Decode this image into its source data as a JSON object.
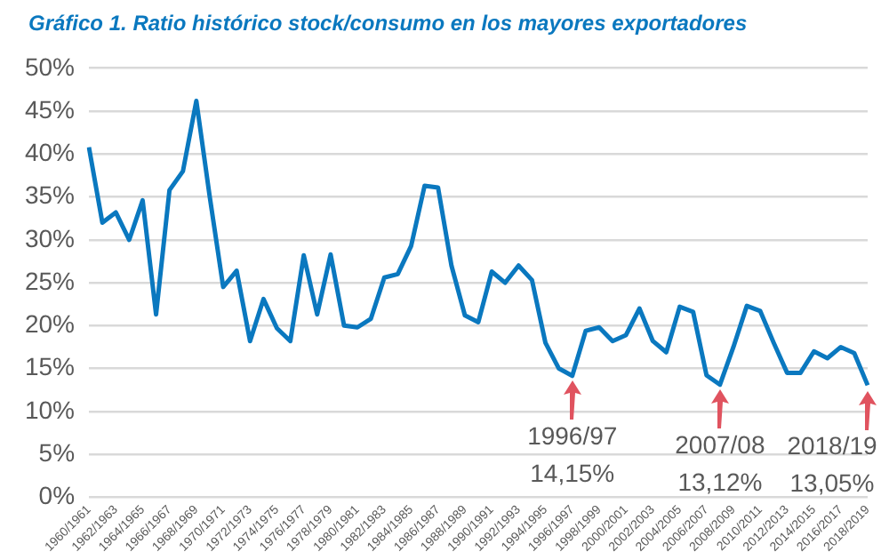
{
  "chart_data": {
    "type": "line",
    "title": "Gráfico 1. Ratio histórico stock/consumo en los mayores exportadores",
    "categories": [
      "1960/1961",
      null,
      "1962/1963",
      null,
      "1964/1965",
      null,
      "1966/1967",
      null,
      "1968/1969",
      null,
      "1970/1971",
      null,
      "1972/1973",
      null,
      "1974/1975",
      null,
      "1976/1977",
      null,
      "1978/1979",
      null,
      "1980/1981",
      null,
      "1982/1983",
      null,
      "1984/1985",
      null,
      "1986/1987",
      null,
      "1988/1989",
      null,
      "1990/1991",
      null,
      "1992/1993",
      null,
      "1994/1995",
      null,
      "1996/1997",
      null,
      "1998/1999",
      null,
      "2000/2001",
      null,
      "2002/2003",
      null,
      "2004/2005",
      null,
      "2006/2007",
      null,
      "2008/2009",
      null,
      "2010/2011",
      null,
      "2012/2013",
      null,
      "2014/2015",
      null,
      "2016/2017",
      null,
      "2018/2019"
    ],
    "series": [
      {
        "color": "#0a78bf",
        "values": [
          40.8,
          32,
          33.2,
          30,
          34.6,
          21.3,
          35.8,
          38,
          46.2,
          35,
          24.5,
          26.4,
          18.2,
          23.1,
          19.7,
          18.2,
          28.2,
          21.3,
          28.3,
          20,
          19.8,
          20.8,
          25.6,
          26,
          29.3,
          36.3,
          36.1,
          27,
          21.2,
          20.4,
          26.3,
          25,
          27,
          25.3,
          18,
          15,
          14.15,
          19.4,
          19.8,
          18.2,
          18.9,
          22,
          18.2,
          16.9,
          22.2,
          21.6,
          14.2,
          13.12,
          17.5,
          22.3,
          21.7,
          18,
          14.5,
          14.5,
          17,
          16.2,
          17.5,
          16.8,
          13.05
        ]
      }
    ],
    "ylim": [
      0,
      50
    ],
    "yticks": [
      {
        "value": 0,
        "label": "0%"
      },
      {
        "value": 5,
        "label": "5%"
      },
      {
        "value": 10,
        "label": "10%"
      },
      {
        "value": 15,
        "label": "15%"
      },
      {
        "value": 20,
        "label": "20%"
      },
      {
        "value": 25,
        "label": "25%"
      },
      {
        "value": 30,
        "label": "30%"
      },
      {
        "value": 35,
        "label": "35%"
      },
      {
        "value": 40,
        "label": "40%"
      },
      {
        "value": 45,
        "label": "45%"
      },
      {
        "value": 50,
        "label": "50%"
      }
    ],
    "grid": "y",
    "legend": false,
    "marker": "none",
    "line_style": "solid",
    "annotations": [
      {
        "text": "1996/97\n14,15%",
        "x": "1996/1997",
        "y": 14.15
      },
      {
        "text": "2007/08\n13,12%",
        "y": 13.12
      },
      {
        "text": "2018/19\n13,05%",
        "x": "2018/2019",
        "y": 13.05
      }
    ]
  }
}
